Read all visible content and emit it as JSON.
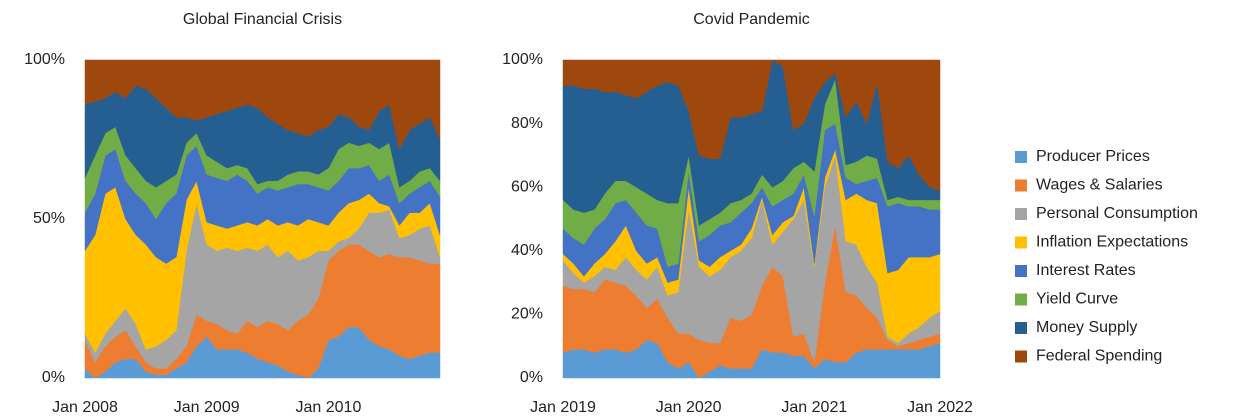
{
  "chart_data": [
    {
      "type": "stacked_area",
      "title": "Global Financial Crisis",
      "categories": [
        "Jan 2008",
        null,
        null,
        null,
        null,
        null,
        null,
        null,
        null,
        null,
        null,
        null,
        "Jan 2009",
        null,
        null,
        null,
        null,
        null,
        null,
        null,
        null,
        null,
        null,
        null,
        "Jan 2010",
        null,
        null,
        null,
        null,
        null,
        null,
        null,
        null,
        null,
        null,
        null
      ],
      "ylim": [
        0,
        100
      ],
      "yticks": [
        {
          "value": 0,
          "label": "0%"
        },
        {
          "value": 50,
          "label": "50%"
        },
        {
          "value": 100,
          "label": "100%"
        }
      ],
      "series": [
        {
          "name": "Producer Prices",
          "color": "#5b9bd5",
          "values": [
            3,
            0,
            2,
            5,
            6,
            6,
            2,
            1,
            1,
            3,
            5,
            10,
            13,
            9,
            9,
            9,
            8,
            6,
            5,
            4,
            2,
            1,
            0,
            3,
            12,
            13,
            16,
            16,
            12,
            10,
            9,
            7,
            6,
            7,
            8,
            8
          ]
        },
        {
          "name": "Wages & Salaries",
          "color": "#ed7d31",
          "values": [
            9,
            5,
            8,
            8,
            9,
            4,
            3,
            2,
            2,
            3,
            5,
            10,
            5,
            8,
            6,
            5,
            10,
            10,
            13,
            13,
            13,
            17,
            20,
            22,
            25,
            27,
            26,
            26,
            28,
            28,
            30,
            31,
            32,
            30,
            28,
            28
          ]
        },
        {
          "name": "Personal Consumption",
          "color": "#a5a5a5",
          "values": [
            2,
            3,
            4,
            5,
            7,
            7,
            4,
            7,
            9,
            9,
            30,
            35,
            24,
            23,
            26,
            26,
            23,
            24,
            24,
            21,
            25,
            19,
            18,
            15,
            3,
            3,
            2,
            5,
            12,
            14,
            14,
            6,
            7,
            10,
            12,
            2
          ]
        },
        {
          "name": "Inflation Expectations",
          "color": "#ffc000",
          "values": [
            26,
            37,
            44,
            42,
            28,
            28,
            33,
            28,
            24,
            23,
            16,
            7,
            7,
            8,
            6,
            8,
            8,
            8,
            8,
            10,
            9,
            11,
            12,
            9,
            8,
            9,
            11,
            9,
            6,
            3,
            1,
            4,
            7,
            5,
            7,
            7
          ]
        },
        {
          "name": "Interest Rates",
          "color": "#4472c4",
          "values": [
            12,
            13,
            12,
            12,
            12,
            13,
            13,
            12,
            19,
            20,
            14,
            11,
            15,
            15,
            15,
            16,
            13,
            10,
            10,
            11,
            11,
            13,
            11,
            11,
            11,
            10,
            11,
            10,
            9,
            7,
            10,
            7,
            6,
            8,
            7,
            12
          ]
        },
        {
          "name": "Yield Curve",
          "color": "#70ad47",
          "values": [
            11,
            12,
            7,
            7,
            8,
            8,
            7,
            10,
            7,
            6,
            4,
            4,
            6,
            5,
            4,
            3,
            4,
            3,
            2,
            3,
            4,
            4,
            4,
            4,
            7,
            10,
            8,
            7,
            7,
            10,
            10,
            5,
            4,
            5,
            4,
            5
          ]
        },
        {
          "name": "Money Supply",
          "color": "#255e91",
          "values": [
            23,
            17,
            11,
            11,
            18,
            26,
            29,
            28,
            23,
            18,
            8,
            4,
            12,
            15,
            18,
            18,
            20,
            24,
            20,
            18,
            14,
            12,
            11,
            14,
            13,
            11,
            8,
            6,
            4,
            12,
            12,
            12,
            16,
            15,
            16,
            13
          ]
        },
        {
          "name": "Federal Spending",
          "color": "#9e480e",
          "values": [
            14,
            13,
            12,
            10,
            12,
            8,
            9,
            12,
            15,
            18,
            18,
            19,
            18,
            17,
            16,
            15,
            14,
            15,
            18,
            20,
            22,
            23,
            24,
            22,
            21,
            17,
            18,
            21,
            22,
            16,
            14,
            28,
            22,
            20,
            18,
            25
          ]
        }
      ]
    },
    {
      "type": "stacked_area",
      "title": "Covid Pandemic",
      "categories": [
        "Jan 2019",
        null,
        null,
        null,
        null,
        null,
        null,
        null,
        null,
        null,
        null,
        null,
        "Jan 2020",
        null,
        null,
        null,
        null,
        null,
        null,
        null,
        null,
        null,
        null,
        null,
        "Jan 2021",
        null,
        null,
        null,
        null,
        null,
        null,
        null,
        null,
        null,
        null,
        null,
        "Jan 2022"
      ],
      "ylim": [
        0,
        100
      ],
      "yticks": [
        {
          "value": 0,
          "label": "0%"
        },
        {
          "value": 20,
          "label": "20%"
        },
        {
          "value": 40,
          "label": "40%"
        },
        {
          "value": 60,
          "label": "60%"
        },
        {
          "value": 80,
          "label": "80%"
        },
        {
          "value": 100,
          "label": "100%"
        }
      ],
      "series": [
        {
          "color": "#5b9bd5",
          "values": [
            8,
            9,
            9,
            8,
            9,
            9,
            8,
            9,
            12,
            11,
            5,
            3,
            5,
            0,
            2,
            4,
            3,
            3,
            3,
            9,
            8,
            8,
            7,
            7,
            3,
            6,
            5,
            5,
            8,
            9,
            9,
            9,
            9,
            9,
            9,
            10,
            11
          ]
        },
        {
          "color": "#ed7d31",
          "values": [
            21,
            19,
            19,
            19,
            22,
            21,
            21,
            17,
            10,
            14,
            14,
            11,
            9,
            12,
            9,
            7,
            16,
            15,
            17,
            20,
            27,
            24,
            6,
            7,
            2,
            24,
            43,
            22,
            18,
            13,
            10,
            3,
            1,
            2,
            3,
            3,
            3
          ]
        },
        {
          "color": "#a5a5a5",
          "values": [
            8,
            5,
            2,
            5,
            4,
            4,
            9,
            8,
            9,
            10,
            7,
            13,
            39,
            23,
            21,
            23,
            19,
            22,
            24,
            27,
            7,
            14,
            37,
            42,
            30,
            30,
            22,
            16,
            16,
            13,
            11,
            1,
            1,
            3,
            4,
            6,
            7
          ]
        },
        {
          "color": "#ffc000",
          "values": [
            2,
            3,
            2,
            4,
            4,
            9,
            10,
            6,
            5,
            3,
            4,
            4,
            7,
            2,
            3,
            4,
            2,
            2,
            3,
            1,
            3,
            3,
            1,
            4,
            1,
            3,
            2,
            13,
            16,
            21,
            25,
            20,
            23,
            24,
            22,
            19,
            18
          ]
        },
        {
          "color": "#4472c4",
          "values": [
            8,
            8,
            10,
            11,
            11,
            12,
            8,
            12,
            12,
            9,
            5,
            5,
            5,
            6,
            10,
            10,
            9,
            10,
            8,
            3,
            9,
            7,
            7,
            4,
            15,
            15,
            8,
            7,
            3,
            6,
            8,
            21,
            21,
            16,
            16,
            15,
            14
          ]
        },
        {
          "color": "#70ad47",
          "values": [
            9,
            9,
            10,
            6,
            8,
            7,
            6,
            8,
            10,
            9,
            20,
            19,
            5,
            5,
            5,
            4,
            6,
            4,
            3,
            4,
            6,
            6,
            8,
            4,
            14,
            8,
            14,
            4,
            7,
            8,
            6,
            2,
            2,
            2,
            2,
            3,
            3
          ]
        },
        {
          "color": "#255e91",
          "values": [
            36,
            39,
            39,
            38,
            32,
            28,
            27,
            28,
            32,
            36,
            38,
            37,
            14,
            22,
            19,
            17,
            27,
            26,
            25,
            20,
            40,
            36,
            12,
            12,
            23,
            7,
            2,
            15,
            19,
            10,
            24,
            12,
            9,
            14,
            8,
            4,
            3
          ]
        },
        {
          "color": "#9e480e",
          "values": [
            8,
            8,
            9,
            9,
            10,
            10,
            11,
            12,
            10,
            8,
            7,
            8,
            16,
            30,
            31,
            31,
            18,
            18,
            17,
            16,
            0,
            2,
            22,
            20,
            12,
            7,
            4,
            18,
            13,
            20,
            7,
            32,
            34,
            30,
            36,
            40,
            41
          ]
        }
      ]
    }
  ]
}
